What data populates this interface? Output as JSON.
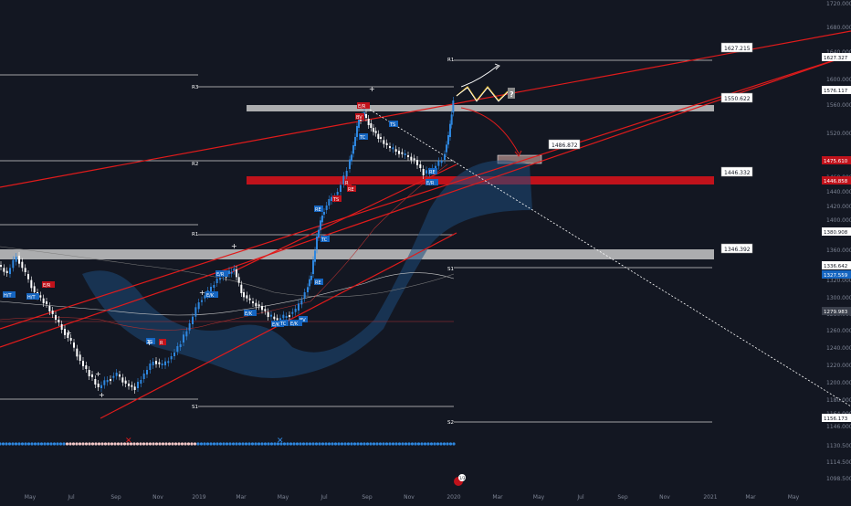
{
  "chart_data": {
    "type": "candlestick",
    "symbol_hint": "gold-style weekly price chart",
    "colors": {
      "background": "#131722",
      "candle_up": "#2e86de",
      "candle_down": "#ffffff",
      "trendline": "#e01b1b",
      "zone_red": "#c0121b",
      "zone_grey": "#c8c8c8",
      "cloud": "#1e4a7a",
      "price_tag_red": "#c0121b",
      "price_tag_blue": "#1565c0",
      "price_tag_grey": "#3a3f4b"
    },
    "y_axis": {
      "min": 1090,
      "max": 1720,
      "ticks": [
        "1720.000",
        "1680.000",
        "1640.000",
        "1600.000",
        "1560.000",
        "1520.000",
        "1480.000",
        "1460.000",
        "1440.000",
        "1420.000",
        "1400.000",
        "1360.000",
        "1340.000",
        "1320.000",
        "1300.000",
        "1280.000",
        "1260.000",
        "1240.000",
        "1220.000",
        "1200.000",
        "1180.000",
        "1164.000",
        "1146.000",
        "1130.500",
        "1114.500",
        "1098.500"
      ]
    },
    "x_axis": {
      "labels": [
        "May",
        "Jul",
        "Sep",
        "Nov",
        "2019",
        "Mar",
        "May",
        "Jul",
        "Sep",
        "Nov",
        "2020",
        "Mar",
        "May",
        "Jul",
        "Sep",
        "Nov",
        "2021",
        "Mar",
        "May"
      ]
    },
    "level_labels": [
      "R1",
      "R3",
      "R2",
      "R1",
      "S1",
      "S1",
      "S2"
    ],
    "callouts": [
      "1627.215",
      "1550.622",
      "1486.872",
      "1446.332",
      "1346.392"
    ],
    "price_tags": [
      {
        "text": "1627.327",
        "style": "plain"
      },
      {
        "text": "1576.117",
        "style": "plain"
      },
      {
        "text": "1475.610",
        "style": "red"
      },
      {
        "text": "1446.858",
        "style": "red"
      },
      {
        "text": "1380.908",
        "style": "plain"
      },
      {
        "text": "1336.642",
        "style": "plain"
      },
      {
        "text": "1327.559",
        "style": "blue"
      },
      {
        "text": "1279.983",
        "style": "grey"
      },
      {
        "text": "1156.173",
        "style": "plain"
      }
    ],
    "event_labels": [
      "H/T",
      "H/T",
      "E/R",
      "E/R",
      "E/K",
      "E/K",
      "E/K",
      "E/R",
      "BV",
      "TS",
      "R",
      "RE",
      "RE",
      "TS",
      "TC",
      "BV",
      "TC",
      "E/K",
      "E/R",
      "RE",
      "TS",
      "TC",
      "R",
      "RE"
    ],
    "question_mark": "?",
    "x_markers": [
      "✕",
      "✕"
    ],
    "badge_text": "1/3"
  }
}
